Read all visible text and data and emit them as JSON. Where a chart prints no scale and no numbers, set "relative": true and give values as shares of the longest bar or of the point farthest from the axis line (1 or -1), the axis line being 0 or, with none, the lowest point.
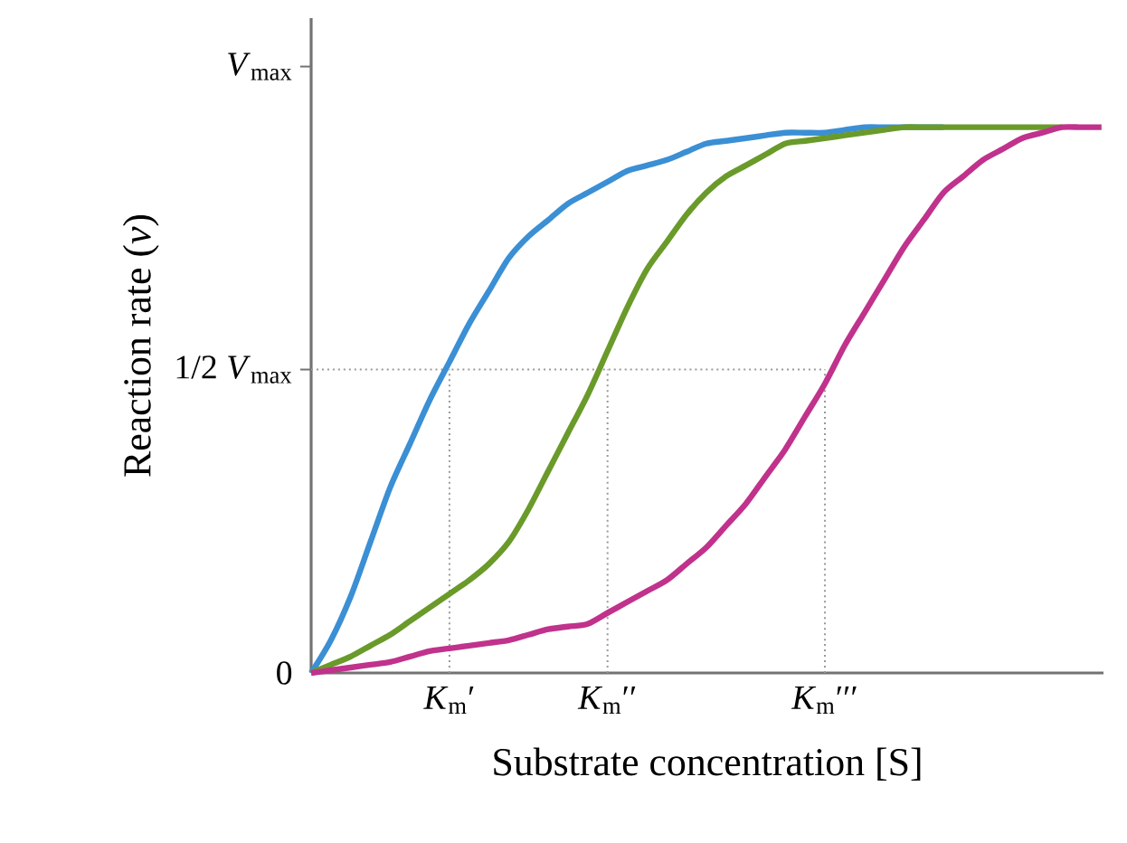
{
  "chart_data": {
    "type": "line",
    "xlabel": "Substrate concentration [S]",
    "ylabel": "Reaction rate (*v*)",
    "relative": true,
    "categories": [
      null,
      null,
      null,
      null,
      null,
      null,
      null,
      "*K*$_{m}$′",
      null,
      null,
      null,
      null,
      null,
      null,
      null,
      "*K*$_{m}$′′",
      null,
      null,
      null,
      null,
      null,
      null,
      null,
      null,
      null,
      null,
      "*K*$_{m}$′′′",
      null,
      null,
      null,
      null,
      null,
      null,
      null,
      null,
      null,
      null,
      null,
      null,
      null,
      null
    ],
    "line_style": "solid",
    "marker": "none",
    "annotations": [
      "0",
      "*V*$_{max}$"
    ],
    "ref_lines": [
      {
        "axis": "y",
        "value": 0.556,
        "label": "1/2 *V*$_{max}$",
        "color": "#999999",
        "line_style": "dotted"
      },
      {
        "axis": "x",
        "value": "*K*$_{m}$′",
        "color": "#999999",
        "line_style": "dotted"
      },
      {
        "axis": "x",
        "value": "*K*$_{m}$′′",
        "color": "#999999",
        "line_style": "dotted"
      },
      {
        "axis": "x",
        "value": "*K*$_{m}$′′′",
        "color": "#999999",
        "line_style": "dotted"
      }
    ],
    "series": [
      {
        "color": "#3b8fd4",
        "values": [
          0,
          0.06,
          0.14,
          0.24,
          0.34,
          0.42,
          0.5,
          0.57,
          0.64,
          0.7,
          0.76,
          0.8,
          0.83,
          0.86,
          0.88,
          0.9,
          0.92,
          0.93,
          0.94,
          0.955,
          0.97,
          0.975,
          0.98,
          0.985,
          0.99,
          0.99,
          0.99,
          0.995,
          1,
          1,
          1,
          1,
          1,
          null,
          null,
          null,
          null,
          null,
          null,
          null,
          null
        ]
      },
      {
        "color": "#6a9a2a",
        "values": [
          0,
          0.015,
          0.03,
          0.05,
          0.07,
          0.095,
          0.12,
          0.145,
          0.17,
          0.2,
          0.24,
          0.3,
          0.37,
          0.44,
          0.51,
          0.59,
          0.67,
          0.74,
          0.79,
          0.84,
          0.88,
          0.91,
          0.93,
          0.95,
          0.97,
          0.975,
          0.98,
          0.985,
          0.99,
          0.995,
          1,
          1,
          1,
          1,
          1,
          1,
          1,
          1,
          1,
          null,
          null
        ]
      },
      {
        "color": "#c0328c",
        "values": [
          0,
          0.005,
          0.01,
          0.015,
          0.02,
          0.03,
          0.04,
          0.045,
          0.05,
          0.055,
          0.06,
          0.07,
          0.08,
          0.085,
          0.09,
          0.11,
          0.13,
          0.15,
          0.17,
          0.2,
          0.23,
          0.27,
          0.31,
          0.36,
          0.41,
          0.47,
          0.53,
          0.6,
          0.66,
          0.72,
          0.78,
          0.83,
          0.88,
          0.91,
          0.94,
          0.96,
          0.98,
          0.99,
          1,
          1,
          1
        ]
      }
    ]
  }
}
